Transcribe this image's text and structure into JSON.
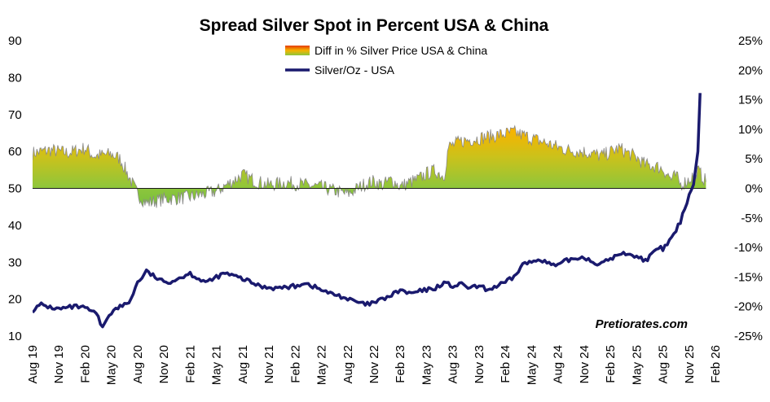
{
  "chart_data": {
    "type": "line",
    "title": "Spread Silver Spot in Percent USA & China",
    "watermark": "Pretiorates.com",
    "left_axis": {
      "label": "",
      "ylim": [
        10,
        90
      ],
      "ticks": [
        "10",
        "20",
        "30",
        "40",
        "50",
        "60",
        "70",
        "80",
        "90"
      ]
    },
    "right_axis": {
      "label": "",
      "ylim": [
        -25,
        25
      ],
      "ticks": [
        "-25%",
        "-20%",
        "-15%",
        "-10%",
        "-5%",
        "0%",
        "5%",
        "10%",
        "15%",
        "20%",
        "25%"
      ]
    },
    "x_axis": {
      "tick_labels": [
        "Aug 19",
        "Nov 19",
        "Feb 20",
        "May 20",
        "Aug 20",
        "Nov 20",
        "Feb 21",
        "May 21",
        "Aug 21",
        "Nov 21",
        "Feb 22",
        "May 22",
        "Aug 22",
        "Nov 22",
        "Feb 23",
        "May 23",
        "Aug 23",
        "Nov 23",
        "Feb 24",
        "May 24",
        "Aug 24",
        "Nov 24",
        "Feb 25",
        "May 25",
        "Aug 25",
        "Nov 25",
        "Feb 26"
      ],
      "range_months": [
        0,
        78
      ]
    },
    "series": [
      {
        "name": "Diff in % Silver Price USA & China",
        "axis": "right",
        "style": "area-gradient",
        "x_months": [
          0,
          2,
          4,
          6,
          7,
          9,
          10,
          12,
          13,
          15,
          18,
          21,
          24,
          25.5,
          27,
          29,
          33,
          36,
          38,
          39,
          40,
          41,
          42,
          43,
          44,
          45,
          46,
          47,
          47.5,
          49,
          51,
          53,
          55,
          57,
          59,
          61,
          63,
          65,
          67,
          69,
          70,
          71,
          72,
          73,
          73.5,
          74,
          75,
          76,
          77
        ],
        "values": [
          6,
          6.5,
          6,
          6.8,
          5.5,
          5.8,
          5,
          -1,
          -2.5,
          -1.8,
          -1.5,
          -0.5,
          2.3,
          1.2,
          0.6,
          1,
          0.2,
          -1,
          0.8,
          1.2,
          0.6,
          1.5,
          0.3,
          1,
          1.5,
          2.5,
          3,
          2,
          7,
          8,
          8.5,
          9,
          9.5,
          8.5,
          7.5,
          6.5,
          6.2,
          5.5,
          6.8,
          5.2,
          4,
          3.8,
          3.3,
          1.5,
          2.2,
          0.6,
          1.5,
          3,
          1
        ]
      },
      {
        "name": "Silver/Oz - USA",
        "axis": "left",
        "style": "line",
        "color": "#1a1a6e",
        "x_months": [
          0,
          1,
          2,
          3,
          4,
          5,
          6,
          7,
          7.5,
          8,
          8.5,
          9,
          10,
          11,
          12,
          13,
          14,
          15,
          16,
          17,
          18,
          19,
          20,
          21,
          22,
          24,
          25,
          26,
          27,
          28,
          30,
          31,
          33,
          34,
          35,
          36,
          38,
          39,
          40,
          41,
          42,
          43,
          44,
          45,
          46,
          47,
          48,
          49,
          50,
          51,
          52,
          53,
          54,
          55,
          56,
          57,
          58,
          59,
          60,
          61,
          62,
          63,
          64,
          65,
          66,
          67,
          68,
          69,
          70,
          70.5,
          71,
          71.5,
          72,
          72.5,
          73,
          73.5,
          74,
          74.5,
          75,
          75.5,
          76,
          76.3
        ],
        "values": [
          17,
          18.5,
          17.8,
          17.3,
          17.7,
          18,
          17.5,
          16.5,
          15,
          12,
          15,
          16.5,
          18,
          19,
          24.5,
          27.5,
          26,
          24.5,
          25,
          26,
          27,
          25.5,
          24.5,
          26,
          27,
          25.5,
          24.5,
          23.5,
          23.2,
          23,
          23.5,
          24.5,
          22.5,
          21.5,
          21,
          20,
          18.5,
          19,
          20,
          21,
          22.5,
          21.5,
          22,
          22.5,
          23,
          24.5,
          23.5,
          24,
          23,
          23.5,
          22.5,
          23.5,
          24.5,
          26,
          29.5,
          30,
          31,
          29.5,
          29,
          30.5,
          31,
          31.5,
          30,
          29.5,
          31,
          32,
          32.5,
          31.5,
          30.5,
          31.5,
          32.5,
          34,
          33.5,
          35,
          36.5,
          38.5,
          41,
          44.5,
          48.5,
          51,
          60,
          79
        ]
      }
    ],
    "legend": {
      "position": "top-center",
      "items": [
        "Diff in % Silver Price USA & China",
        "Silver/Oz - USA"
      ]
    }
  }
}
